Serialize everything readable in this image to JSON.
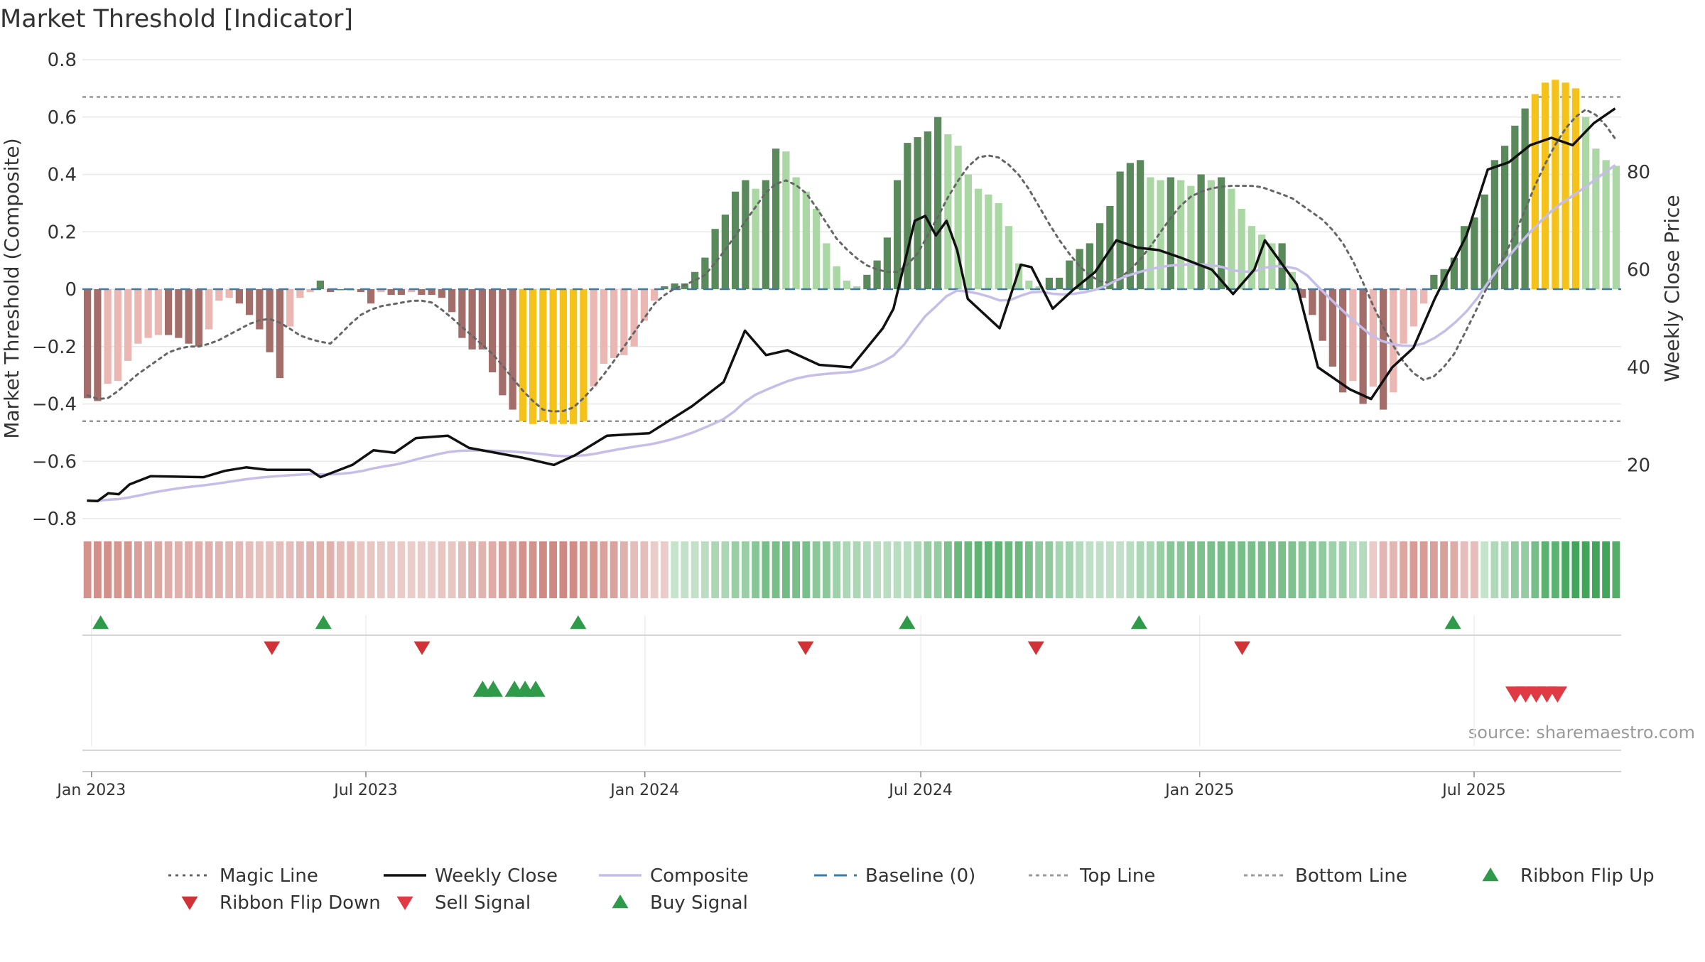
{
  "chart_data": {
    "type": "bar",
    "title": "Market Threshold [Indicator]",
    "source": "source: sharemaestro.com",
    "ylabel": "Market Threshold (Composite)",
    "y2label": "Weekly Close Price",
    "ylim": [
      -0.8,
      0.8
    ],
    "y2lim": [
      9,
      103
    ],
    "xlim": [
      "2022-12-26",
      "2025-10-06"
    ],
    "y_ticks": [
      0.8,
      0.6,
      0.4,
      0.2,
      0,
      -0.2,
      -0.4,
      -0.6,
      -0.8
    ],
    "y_tick_labels": [
      "0.8",
      "0.6",
      "0.4",
      "0.2",
      "0",
      "−0.2",
      "−0.4",
      "−0.6",
      "−0.8"
    ],
    "y2_ticks": [
      80,
      60,
      40,
      20
    ],
    "x_ticks": [
      {
        "date": "2023-01-01",
        "label": "Jan 2023"
      },
      {
        "date": "2023-07-01",
        "label": "Jul 2023"
      },
      {
        "date": "2024-01-01",
        "label": "Jan 2024"
      },
      {
        "date": "2024-07-01",
        "label": "Jul 2024"
      },
      {
        "date": "2025-01-01",
        "label": "Jan 2025"
      },
      {
        "date": "2025-07-01",
        "label": "Jul 2025"
      }
    ],
    "grid": true,
    "legend_position": "bottom",
    "top_line": 0.67,
    "bottom_line": -0.46,
    "composite_anchors": [
      [
        -0.37,
        -0.39,
        -0.35,
        -0.3,
        -0.26,
        -0.22,
        -0.2,
        -0.2,
        -0.18,
        -0.15,
        -0.12,
        -0.1,
        -0.12,
        -0.16,
        -0.18,
        -0.19,
        -0.13,
        -0.08,
        -0.06,
        -0.05,
        -0.04,
        -0.04,
        -0.08,
        -0.13,
        -0.18,
        -0.23,
        -0.3,
        -0.37,
        -0.42,
        -0.43,
        -0.41,
        -0.35,
        -0.28,
        -0.2,
        -0.12,
        -0.04,
        0.0,
        0.02,
        0.05,
        0.12,
        0.2,
        0.28,
        0.36,
        0.38,
        0.35,
        0.27,
        0.18,
        0.12,
        0.08,
        0.06,
        0.06,
        0.12,
        0.22,
        0.33,
        0.42,
        0.47,
        0.46,
        0.42,
        0.34,
        0.24,
        0.15,
        0.08,
        0.03,
        0.02,
        0.06,
        0.12,
        0.2,
        0.28,
        0.33,
        0.35,
        0.36,
        0.36,
        0.36,
        0.34,
        0.32,
        0.28,
        0.24,
        0.18,
        0.08,
        -0.05,
        -0.17,
        -0.26,
        -0.32,
        -0.3,
        -0.23,
        -0.12,
        0.0,
        0.1,
        0.22,
        0.36,
        0.48,
        0.57,
        0.63,
        0.6,
        0.52
      ]
    ],
    "bars": [
      -0.38,
      -0.39,
      -0.33,
      -0.32,
      -0.25,
      -0.19,
      -0.17,
      -0.16,
      -0.16,
      -0.17,
      -0.19,
      -0.2,
      -0.14,
      -0.04,
      -0.03,
      -0.05,
      -0.09,
      -0.14,
      -0.22,
      -0.31,
      -0.13,
      -0.03,
      -0.01,
      0.03,
      -0.01,
      0.0,
      0.0,
      -0.01,
      -0.05,
      -0.01,
      -0.02,
      -0.02,
      -0.01,
      -0.02,
      -0.02,
      -0.03,
      -0.08,
      -0.17,
      -0.21,
      -0.21,
      -0.29,
      -0.37,
      -0.42,
      -0.46,
      -0.47,
      -0.46,
      -0.47,
      -0.47,
      -0.47,
      -0.46,
      -0.34,
      -0.26,
      -0.24,
      -0.23,
      -0.2,
      -0.11,
      -0.04,
      0.01,
      0.02,
      0.02,
      0.06,
      0.11,
      0.21,
      0.26,
      0.34,
      0.38,
      0.35,
      0.38,
      0.49,
      0.48,
      0.39,
      0.34,
      0.28,
      0.16,
      0.08,
      0.03,
      0.01,
      0.05,
      0.1,
      0.18,
      0.38,
      0.51,
      0.53,
      0.55,
      0.6,
      0.54,
      0.5,
      0.4,
      0.35,
      0.33,
      0.3,
      0.22,
      0.09,
      0.03,
      0.01,
      0.04,
      0.04,
      0.1,
      0.14,
      0.16,
      0.23,
      0.29,
      0.41,
      0.44,
      0.45,
      0.39,
      0.38,
      0.39,
      0.38,
      0.36,
      0.4,
      0.38,
      0.39,
      0.35,
      0.28,
      0.22,
      0.19,
      0.16,
      0.16,
      0.06,
      -0.03,
      -0.09,
      -0.18,
      -0.27,
      -0.36,
      -0.32,
      -0.4,
      -0.34,
      -0.42,
      -0.36,
      -0.19,
      -0.13,
      -0.05,
      0.05,
      0.07,
      0.11,
      0.22,
      0.25,
      0.33,
      0.45,
      0.5,
      0.57,
      0.63,
      0.68,
      0.72,
      0.73,
      0.72,
      0.7,
      0.6,
      0.49,
      0.45,
      0.43
    ],
    "weekly_close_anchors": [
      [
        "2022-12-29",
        12.7
      ],
      [
        "2023-01-05",
        12.6
      ],
      [
        "2023-01-12",
        14.2
      ],
      [
        "2023-01-19",
        14.0
      ],
      [
        "2023-01-26",
        16.0
      ],
      [
        "2023-02-09",
        17.7
      ],
      [
        "2023-03-16",
        17.5
      ],
      [
        "2023-03-30",
        18.8
      ],
      [
        "2023-04-13",
        19.5
      ],
      [
        "2023-04-27",
        19.0
      ],
      [
        "2023-05-25",
        19.0
      ],
      [
        "2023-06-01",
        17.5
      ],
      [
        "2023-06-22",
        20.0
      ],
      [
        "2023-07-06",
        23.0
      ],
      [
        "2023-07-20",
        22.5
      ],
      [
        "2023-08-03",
        25.5
      ],
      [
        "2023-08-24",
        26.0
      ],
      [
        "2023-09-07",
        23.5
      ],
      [
        "2023-10-12",
        21.5
      ],
      [
        "2023-11-02",
        20.0
      ],
      [
        "2023-11-16",
        22.0
      ],
      [
        "2023-12-07",
        26.0
      ],
      [
        "2024-01-04",
        26.5
      ],
      [
        "2024-02-01",
        32.0
      ],
      [
        "2024-02-22",
        37.0
      ],
      [
        "2024-03-07",
        47.5
      ],
      [
        "2024-03-21",
        42.5
      ],
      [
        "2024-04-04",
        43.5
      ],
      [
        "2024-04-25",
        40.5
      ],
      [
        "2024-05-16",
        40.0
      ],
      [
        "2024-06-06",
        48.0
      ],
      [
        "2024-06-13",
        52.0
      ],
      [
        "2024-06-27",
        70.0
      ],
      [
        "2024-07-04",
        71.0
      ],
      [
        "2024-07-11",
        67.0
      ],
      [
        "2024-07-18",
        70.0
      ],
      [
        "2024-07-25",
        64.0
      ],
      [
        "2024-08-01",
        54.0
      ],
      [
        "2024-08-22",
        48.0
      ],
      [
        "2024-09-05",
        61.0
      ],
      [
        "2024-09-12",
        60.5
      ],
      [
        "2024-09-26",
        52.0
      ],
      [
        "2024-10-10",
        56.0
      ],
      [
        "2024-10-24",
        59.5
      ],
      [
        "2024-11-07",
        66.0
      ],
      [
        "2024-11-21",
        64.5
      ],
      [
        "2024-12-05",
        64.0
      ],
      [
        "2024-12-19",
        62.5
      ],
      [
        "2025-01-09",
        60.0
      ],
      [
        "2025-01-23",
        55.0
      ],
      [
        "2025-02-06",
        60.0
      ],
      [
        "2025-02-13",
        66.0
      ],
      [
        "2025-03-06",
        57.0
      ],
      [
        "2025-03-20",
        40.0
      ],
      [
        "2025-04-10",
        35.5
      ],
      [
        "2025-04-24",
        33.5
      ],
      [
        "2025-05-08",
        40.0
      ],
      [
        "2025-05-22",
        44.0
      ],
      [
        "2025-06-05",
        54.0
      ],
      [
        "2025-06-26",
        67.0
      ],
      [
        "2025-07-10",
        80.5
      ],
      [
        "2025-07-24",
        82.0
      ],
      [
        "2025-08-07",
        85.5
      ],
      [
        "2025-08-21",
        87.0
      ],
      [
        "2025-09-04",
        85.5
      ],
      [
        "2025-09-18",
        90.0
      ],
      [
        "2025-10-02",
        93.0
      ]
    ],
    "ribbon_flip_up": [
      "2023-01-07",
      "2023-06-03",
      "2023-11-18",
      "2024-06-22",
      "2024-11-22",
      "2025-06-17"
    ],
    "ribbon_flip_down": [
      "2023-04-30",
      "2023-08-07",
      "2024-04-16",
      "2024-09-15",
      "2025-01-29"
    ],
    "buy_signal": [
      "2023-09-16",
      "2023-09-23",
      "2023-10-07",
      "2023-10-14",
      "2023-10-21"
    ],
    "sell_signal": [
      "2025-07-28",
      "2025-08-04",
      "2025-08-11",
      "2025-08-18",
      "2025-08-25"
    ],
    "legend": [
      {
        "label": "Magic Line",
        "kind": "dotted",
        "color": "#616161"
      },
      {
        "label": "Weekly Close",
        "kind": "solid",
        "color": "#111111"
      },
      {
        "label": "Composite",
        "kind": "solid",
        "color": "#c6bee8"
      },
      {
        "label": "Baseline (0)",
        "kind": "dashed",
        "color": "#3a7ca5"
      },
      {
        "label": "Top Line",
        "kind": "fine-dashed",
        "color": "#9a9a9a"
      },
      {
        "label": "Bottom Line",
        "kind": "fine-dashed",
        "color": "#9a9a9a"
      },
      {
        "label": "Ribbon Flip Up",
        "kind": "tri-up",
        "color": "#2e9a4a"
      },
      {
        "label": "Ribbon Flip Down",
        "kind": "tri-down",
        "color": "#d03235"
      },
      {
        "label": "Sell Signal",
        "kind": "tri-down",
        "color": "#e03a45"
      },
      {
        "label": "Buy Signal",
        "kind": "tri-up",
        "color": "#2e9a4a"
      }
    ],
    "colors": {
      "bull_dark": "#5a8a5c",
      "bull_light": "#aad7a4",
      "bear_dark": "#a36e6a",
      "bear_light": "#eab7b3",
      "extreme": "#f5c21a",
      "ribbon_green": "#42a65a",
      "ribbon_red": "#c56a62",
      "composite": "#c6bee8",
      "close": "#111111",
      "magic": "#666666",
      "baseline": "#3a7ca5"
    }
  }
}
